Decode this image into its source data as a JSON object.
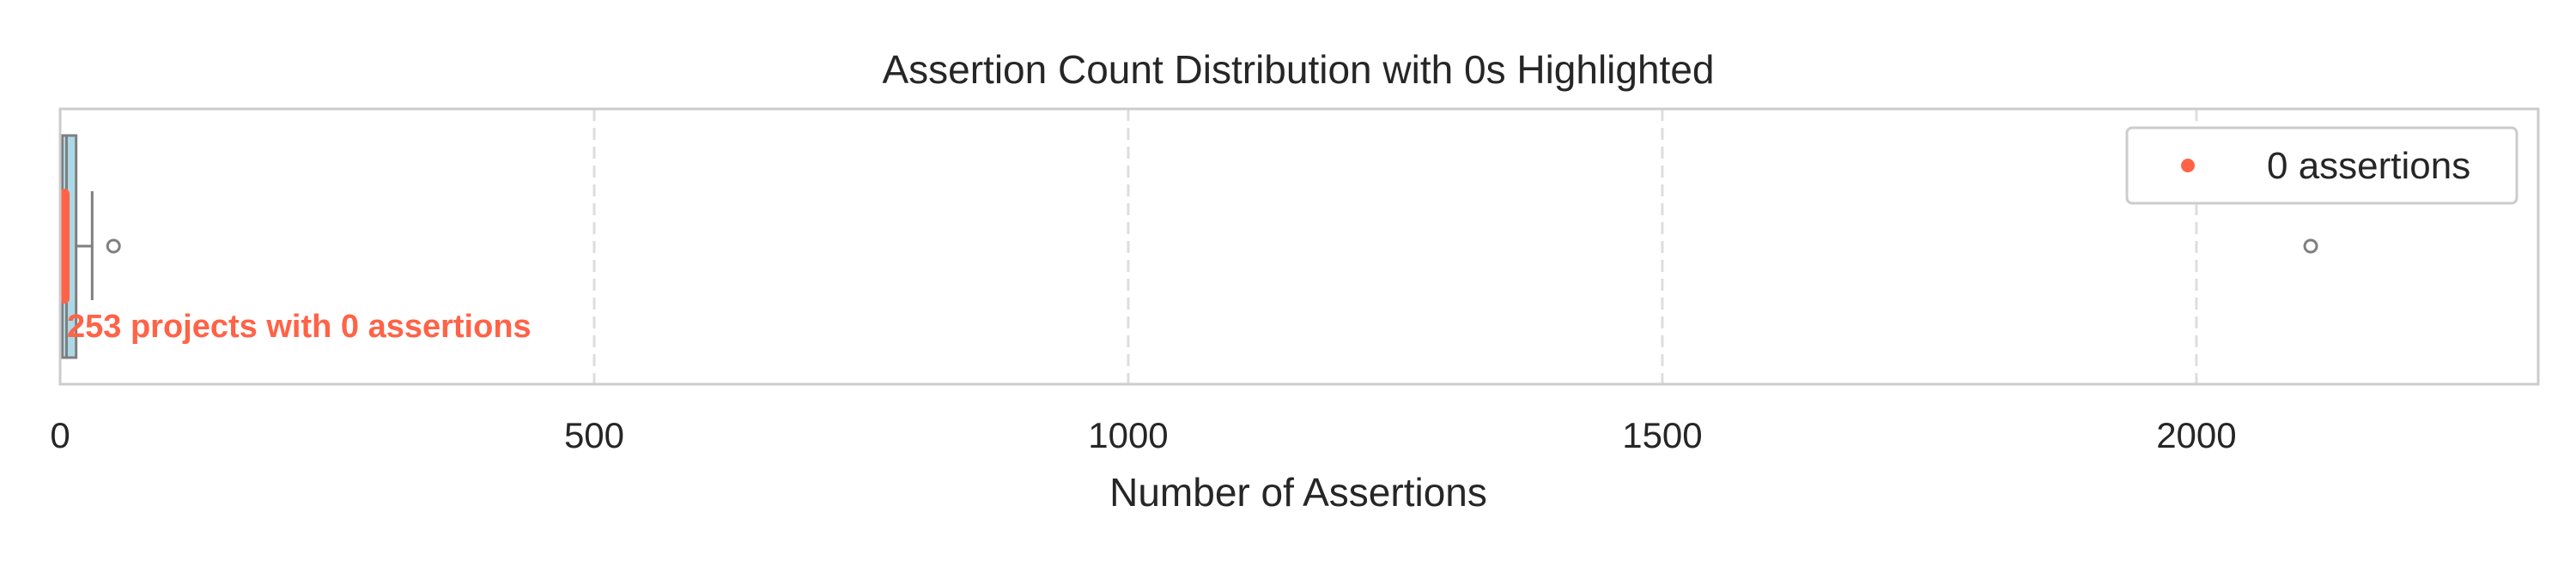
{
  "chart_data": {
    "type": "boxplot",
    "title": "Assertion Count Distribution with 0s Highlighted",
    "xlabel": "Number of Assertions",
    "ylabel": "",
    "xlim": [
      0,
      2320
    ],
    "xticks": [
      0,
      500,
      1000,
      1500,
      2000
    ],
    "xtick_labels": [
      "0",
      "500",
      "1000",
      "1500",
      "2000"
    ],
    "grid": "vertical dashed",
    "box": {
      "q1": 2,
      "median": 6,
      "q3": 15,
      "whisker_low": 0,
      "whisker_high": 30
    },
    "outliers": [
      50,
      2107
    ],
    "zeros": {
      "count": 253,
      "value": 0,
      "label": "0 assertions"
    },
    "annotation": "253 projects with 0 assertions",
    "legend": {
      "placement": "top-right",
      "entries": [
        "0 assertions"
      ]
    },
    "colors": {
      "box_fill": "#add8e6",
      "box_edge": "#7f7f7f",
      "zero_marker": "#ff6347",
      "grid": "#dddddd",
      "frame": "#cccccc"
    }
  }
}
